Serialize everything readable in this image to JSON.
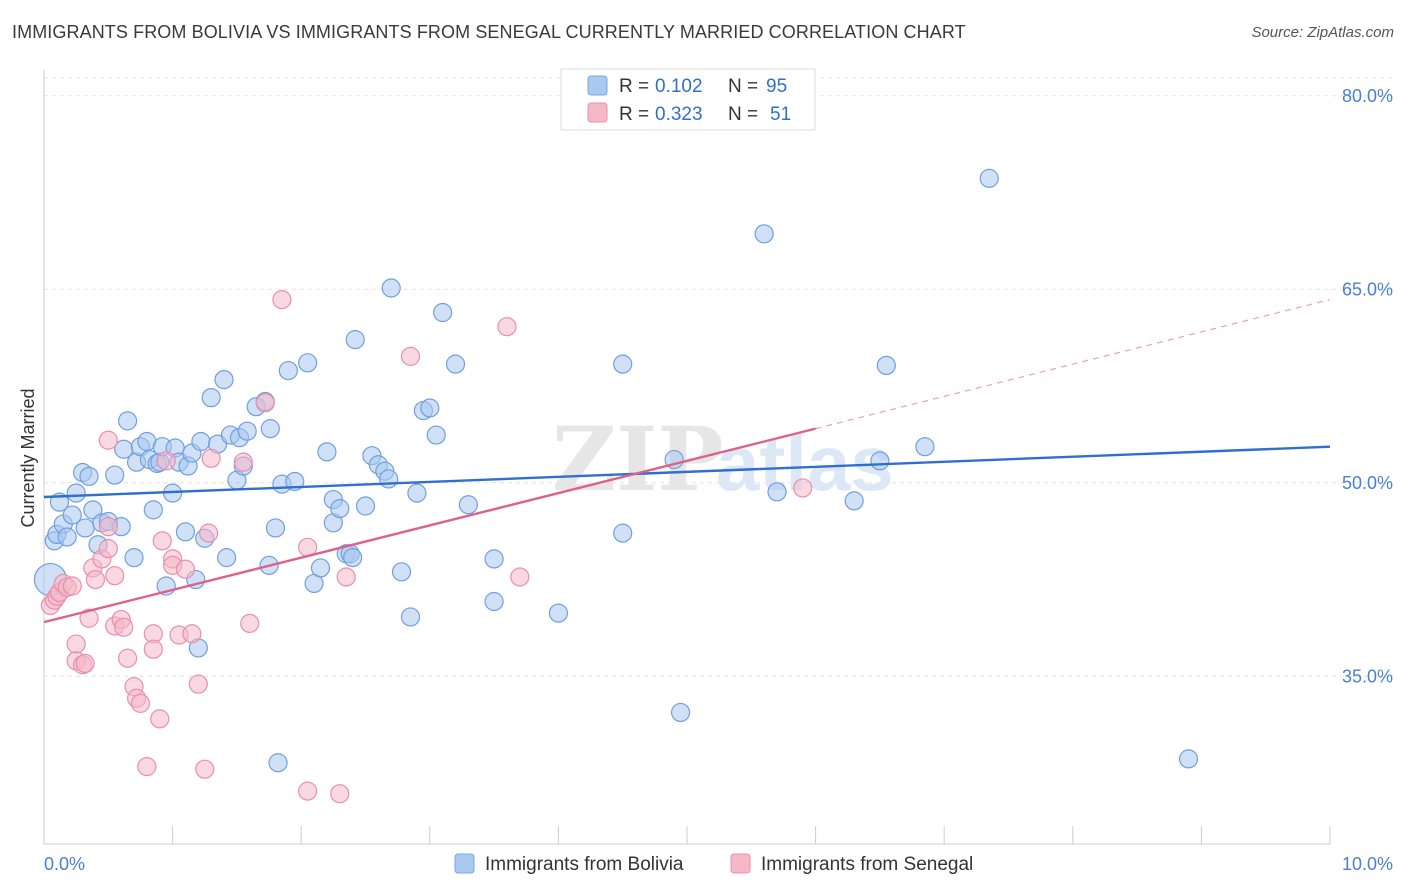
{
  "header": {
    "title": "IMMIGRANTS FROM BOLIVIA VS IMMIGRANTS FROM SENEGAL CURRENTLY MARRIED CORRELATION CHART",
    "source": "Source: ZipAtlas.com"
  },
  "watermark": {
    "zip": "ZIP",
    "atlas": "atlas"
  },
  "legend_top": [
    {
      "r_label": "R =",
      "r_value": "0.102",
      "n_label": "N =",
      "n_value": "95",
      "color": "#a9c9f0"
    },
    {
      "r_label": "R =",
      "r_value": "0.323",
      "n_label": "N =",
      "n_value": "51",
      "color": "#f5b8c9"
    }
  ],
  "chart_data": {
    "type": "scatter",
    "xlabel": "",
    "ylabel": "Currently Married",
    "xlim": [
      0,
      10
    ],
    "ylim": [
      22,
      82
    ],
    "x_tick_labels": [
      "0.0%",
      "10.0%"
    ],
    "y_ticks": [
      35,
      50,
      65,
      80
    ],
    "y_tick_labels": [
      "35.0%",
      "50.0%",
      "65.0%",
      "80.0%"
    ],
    "grid": "horizontal dashed",
    "legend_position": "bottom-center",
    "series": [
      {
        "name": "Immigrants from Bolivia",
        "color": "#a9c9f0",
        "line_color": "#2f6fd0",
        "trend": {
          "x": [
            0,
            10
          ],
          "y": [
            48.9,
            52.8
          ]
        },
        "points": [
          [
            0.05,
            42.5
          ],
          [
            0.08,
            45.5
          ],
          [
            0.1,
            46.0
          ],
          [
            0.12,
            48.5
          ],
          [
            0.15,
            46.8
          ],
          [
            0.18,
            45.8
          ],
          [
            0.22,
            47.5
          ],
          [
            0.25,
            49.2
          ],
          [
            0.3,
            50.8
          ],
          [
            0.32,
            46.5
          ],
          [
            0.35,
            50.5
          ],
          [
            0.38,
            47.9
          ],
          [
            0.42,
            45.2
          ],
          [
            0.45,
            46.9
          ],
          [
            0.5,
            47.0
          ],
          [
            0.55,
            50.6
          ],
          [
            0.6,
            46.6
          ],
          [
            0.62,
            52.6
          ],
          [
            0.65,
            54.8
          ],
          [
            0.7,
            44.2
          ],
          [
            0.72,
            51.6
          ],
          [
            0.75,
            52.8
          ],
          [
            0.8,
            53.2
          ],
          [
            0.82,
            51.8
          ],
          [
            0.85,
            47.9
          ],
          [
            0.88,
            51.5
          ],
          [
            0.9,
            51.6
          ],
          [
            0.92,
            52.8
          ],
          [
            0.95,
            42.0
          ],
          [
            1.0,
            49.2
          ],
          [
            1.02,
            52.7
          ],
          [
            1.05,
            51.6
          ],
          [
            1.1,
            46.2
          ],
          [
            1.12,
            51.3
          ],
          [
            1.15,
            52.3
          ],
          [
            1.18,
            42.5
          ],
          [
            1.2,
            37.2
          ],
          [
            1.22,
            53.2
          ],
          [
            1.25,
            45.7
          ],
          [
            1.3,
            56.6
          ],
          [
            1.35,
            53.0
          ],
          [
            1.4,
            58.0
          ],
          [
            1.42,
            44.2
          ],
          [
            1.45,
            53.7
          ],
          [
            1.5,
            50.2
          ],
          [
            1.52,
            53.5
          ],
          [
            1.55,
            51.3
          ],
          [
            1.58,
            54.0
          ],
          [
            1.65,
            55.9
          ],
          [
            1.72,
            56.3
          ],
          [
            1.75,
            43.6
          ],
          [
            1.76,
            54.2
          ],
          [
            1.8,
            46.5
          ],
          [
            1.82,
            28.3
          ],
          [
            1.85,
            49.9
          ],
          [
            1.9,
            58.7
          ],
          [
            1.95,
            50.1
          ],
          [
            2.05,
            59.3
          ],
          [
            2.1,
            42.2
          ],
          [
            2.15,
            43.4
          ],
          [
            2.2,
            52.4
          ],
          [
            2.25,
            46.9
          ],
          [
            2.25,
            48.7
          ],
          [
            2.3,
            48.0
          ],
          [
            2.35,
            44.5
          ],
          [
            2.38,
            44.5
          ],
          [
            2.4,
            44.2
          ],
          [
            2.42,
            61.1
          ],
          [
            2.5,
            48.2
          ],
          [
            2.55,
            52.1
          ],
          [
            2.6,
            51.4
          ],
          [
            2.65,
            50.9
          ],
          [
            2.68,
            50.3
          ],
          [
            2.7,
            65.1
          ],
          [
            2.78,
            43.1
          ],
          [
            2.85,
            39.6
          ],
          [
            2.9,
            49.2
          ],
          [
            2.95,
            55.6
          ],
          [
            3.0,
            55.8
          ],
          [
            3.05,
            53.7
          ],
          [
            3.1,
            63.2
          ],
          [
            3.2,
            59.2
          ],
          [
            3.3,
            48.3
          ],
          [
            3.5,
            40.8
          ],
          [
            3.5,
            44.1
          ],
          [
            4.0,
            39.9
          ],
          [
            4.5,
            46.1
          ],
          [
            4.5,
            59.2
          ],
          [
            4.9,
            51.8
          ],
          [
            4.95,
            32.2
          ],
          [
            5.6,
            69.3
          ],
          [
            5.7,
            49.3
          ],
          [
            6.3,
            48.6
          ],
          [
            6.5,
            51.7
          ],
          [
            6.55,
            59.1
          ],
          [
            6.85,
            52.8
          ],
          [
            7.35,
            73.6
          ],
          [
            8.9,
            28.6
          ]
        ]
      },
      {
        "name": "Immigrants from Senegal",
        "color": "#f5b8c9",
        "line_color": "#e0608a",
        "trend": {
          "x": [
            0,
            6.0
          ],
          "y": [
            39.2,
            54.2
          ]
        },
        "trend_dashed": {
          "x": [
            6.0,
            10
          ],
          "y": [
            54.2,
            64.2
          ]
        },
        "points": [
          [
            0.05,
            40.5
          ],
          [
            0.08,
            40.9
          ],
          [
            0.1,
            41.2
          ],
          [
            0.12,
            41.5
          ],
          [
            0.15,
            42.2
          ],
          [
            0.18,
            41.9
          ],
          [
            0.22,
            42.0
          ],
          [
            0.25,
            37.5
          ],
          [
            0.25,
            36.2
          ],
          [
            0.3,
            35.9
          ],
          [
            0.32,
            36.0
          ],
          [
            0.35,
            39.5
          ],
          [
            0.38,
            43.4
          ],
          [
            0.4,
            42.5
          ],
          [
            0.45,
            44.1
          ],
          [
            0.5,
            46.6
          ],
          [
            0.5,
            53.3
          ],
          [
            0.5,
            44.9
          ],
          [
            0.55,
            42.8
          ],
          [
            0.55,
            38.9
          ],
          [
            0.6,
            39.4
          ],
          [
            0.62,
            38.8
          ],
          [
            0.65,
            36.4
          ],
          [
            0.7,
            34.2
          ],
          [
            0.72,
            33.3
          ],
          [
            0.75,
            32.9
          ],
          [
            0.8,
            28.0
          ],
          [
            0.85,
            38.3
          ],
          [
            0.85,
            37.1
          ],
          [
            0.9,
            31.7
          ],
          [
            0.92,
            45.5
          ],
          [
            0.95,
            51.7
          ],
          [
            1.0,
            44.1
          ],
          [
            1.0,
            43.6
          ],
          [
            1.05,
            38.2
          ],
          [
            1.1,
            43.3
          ],
          [
            1.15,
            38.3
          ],
          [
            1.2,
            34.4
          ],
          [
            1.25,
            27.8
          ],
          [
            1.28,
            46.1
          ],
          [
            1.3,
            51.9
          ],
          [
            1.55,
            51.6
          ],
          [
            1.6,
            39.1
          ],
          [
            1.72,
            56.2
          ],
          [
            1.85,
            64.2
          ],
          [
            2.05,
            45.0
          ],
          [
            2.05,
            26.1
          ],
          [
            2.3,
            25.9
          ],
          [
            2.35,
            42.7
          ],
          [
            2.85,
            59.8
          ],
          [
            3.6,
            62.1
          ],
          [
            3.7,
            42.7
          ],
          [
            5.9,
            49.6
          ]
        ]
      }
    ]
  }
}
